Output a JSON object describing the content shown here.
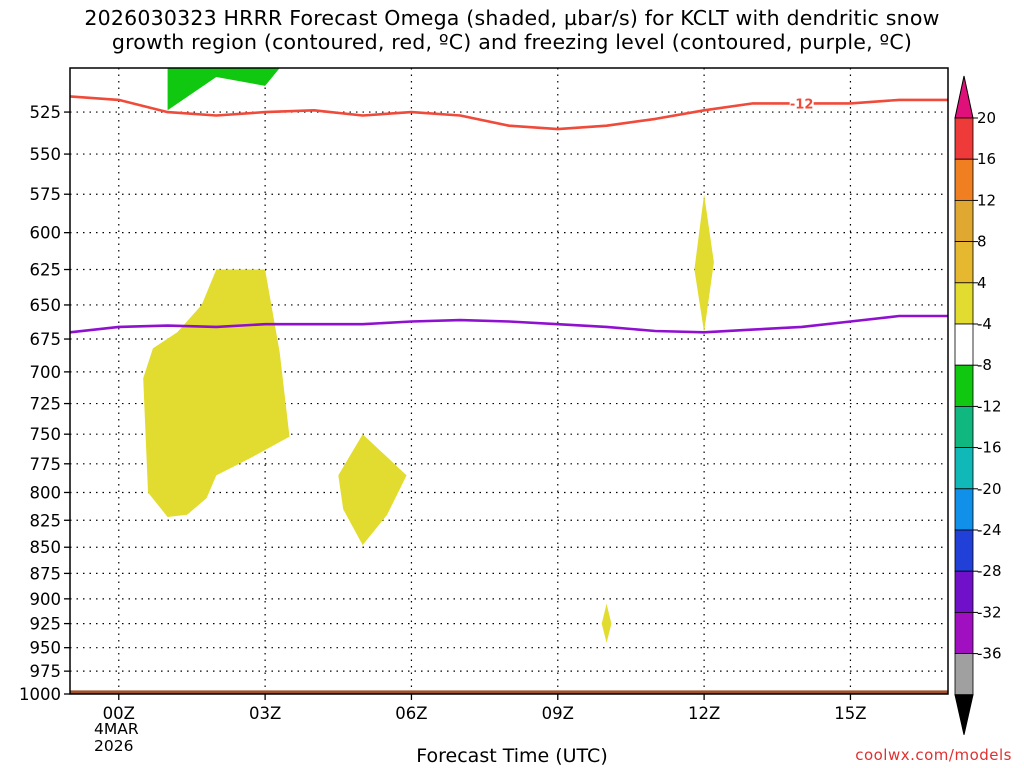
{
  "title": {
    "line1": "2026030323 HRRR Forecast Omega (shaded, µbar/s) for KCLT with dendritic snow",
    "line2": "growth region (contoured, red, ºC) and freezing level (contoured, purple, ºC)"
  },
  "footer": {
    "xlabel": "Forecast Time (UTC)",
    "credit": "coolwx.com/models",
    "date_day": "4MAR",
    "date_year": "2026"
  },
  "chart_data": {
    "type": "time-height",
    "title": "2026030323 HRRR Forecast Omega (shaded, µbar/s) for KCLT with dendritic snow growth region (contoured, red, ºC) and freezing level (contoured, purple, ºC)",
    "xlabel": "Forecast Time (UTC)",
    "ylabel": "",
    "x_units": "hours after 00Z 4MAR2026",
    "xlim": [
      -1,
      17
    ],
    "x_ticks": [
      {
        "x": 0,
        "label": "00Z"
      },
      {
        "x": 3,
        "label": "03Z"
      },
      {
        "x": 6,
        "label": "06Z"
      },
      {
        "x": 9,
        "label": "09Z"
      },
      {
        "x": 12,
        "label": "12Z"
      },
      {
        "x": 15,
        "label": "15Z"
      }
    ],
    "y_scale": "log-pressure",
    "ylim": [
      1000,
      500
    ],
    "y_ticks": [
      525,
      550,
      575,
      600,
      625,
      650,
      675,
      700,
      725,
      750,
      775,
      800,
      825,
      850,
      875,
      900,
      925,
      950,
      975,
      1000
    ],
    "grid": true,
    "colorbar": {
      "labels": [
        "20",
        "16",
        "12",
        "8",
        "4",
        "-4",
        "-8",
        "-12",
        "-16",
        "-20",
        "-24",
        "-28",
        "-32",
        "-36"
      ],
      "above_color": "#e0107a",
      "below_color": "#000000",
      "colors": [
        "#ef3a3a",
        "#ef7f20",
        "#e0a830",
        "#e6b830",
        "#e2dc30",
        "#ffffff",
        "#10c810",
        "#10b880",
        "#10b8b8",
        "#1090e8",
        "#2040d8",
        "#7010c8",
        "#a010c0",
        "#a0a0a0"
      ]
    },
    "omega_regions": [
      {
        "name": "green",
        "color": "#10c810",
        "points": [
          [
            1.0,
            500
          ],
          [
            3.3,
            500
          ],
          [
            3.0,
            510
          ],
          [
            2.0,
            505
          ],
          [
            1.0,
            524
          ]
        ]
      },
      {
        "name": "yellow-1",
        "color": "#e2dc30",
        "points": [
          [
            2.0,
            625
          ],
          [
            3.0,
            625
          ],
          [
            3.3,
            685
          ],
          [
            3.5,
            752
          ],
          [
            2.7,
            770
          ],
          [
            2.0,
            785
          ],
          [
            1.8,
            805
          ],
          [
            1.4,
            820
          ],
          [
            1.0,
            822
          ],
          [
            0.6,
            800
          ],
          [
            0.5,
            705
          ],
          [
            0.7,
            682
          ],
          [
            1.2,
            670
          ],
          [
            1.7,
            650
          ],
          [
            2.0,
            625
          ]
        ]
      },
      {
        "name": "yellow-2",
        "color": "#e2dc30",
        "points": [
          [
            5.0,
            750
          ],
          [
            5.9,
            785
          ],
          [
            5.5,
            820
          ],
          [
            5.0,
            848
          ],
          [
            4.6,
            815
          ],
          [
            4.5,
            785
          ],
          [
            5.0,
            750
          ]
        ]
      },
      {
        "name": "yellow-3",
        "color": "#e2dc30",
        "points": [
          [
            12.0,
            575
          ],
          [
            12.2,
            620
          ],
          [
            12.0,
            670
          ],
          [
            11.8,
            625
          ],
          [
            12.0,
            575
          ]
        ]
      },
      {
        "name": "yellow-4",
        "color": "#e2dc30",
        "points": [
          [
            10.0,
            905
          ],
          [
            10.1,
            925
          ],
          [
            10.0,
            945
          ],
          [
            9.9,
            925
          ],
          [
            10.0,
            905
          ]
        ]
      }
    ],
    "series": [
      {
        "name": "-12",
        "color": "#ef4a3a",
        "x": [
          -1,
          0,
          1,
          2,
          3,
          4,
          5,
          6,
          7,
          8,
          9,
          10,
          11,
          12,
          13,
          14,
          15,
          16,
          17
        ],
        "y": [
          516,
          518,
          525,
          527,
          525,
          524,
          527,
          525,
          527,
          533,
          535,
          533,
          529,
          524,
          520,
          520,
          520,
          518,
          518
        ]
      },
      {
        "name": "",
        "color": "#9010d0",
        "x": [
          -1,
          0,
          1,
          2,
          3,
          4,
          5,
          6,
          7,
          8,
          9,
          10,
          11,
          12,
          13,
          14,
          15,
          16,
          17
        ],
        "y": [
          670,
          666,
          665,
          666,
          664,
          664,
          664,
          662,
          661,
          662,
          664,
          666,
          669,
          670,
          668,
          666,
          662,
          658,
          658
        ]
      }
    ],
    "surface": {
      "color": "#a0522d",
      "x": [
        -1,
        17
      ],
      "top_pressure": 996
    }
  }
}
